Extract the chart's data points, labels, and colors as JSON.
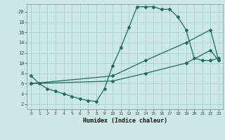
{
  "xlabel": "Humidex (Indice chaleur)",
  "bg_color": "#cce8e4",
  "grid_color": "#aed4cf",
  "line_color": "#1a6b5e",
  "xlim": [
    -0.5,
    23.5
  ],
  "ylim": [
    1.0,
    21.5
  ],
  "xticks": [
    0,
    1,
    2,
    3,
    4,
    5,
    6,
    7,
    8,
    9,
    10,
    11,
    12,
    13,
    14,
    15,
    16,
    17,
    18,
    19,
    20,
    21,
    22,
    23
  ],
  "yticks": [
    2,
    4,
    6,
    8,
    10,
    12,
    14,
    16,
    18,
    20
  ],
  "line1_x": [
    0,
    1,
    2,
    3,
    4,
    5,
    6,
    7,
    8,
    9,
    10,
    11,
    12,
    13,
    14,
    15,
    16,
    17,
    18,
    19,
    20,
    21,
    22,
    23
  ],
  "line1_y": [
    7.5,
    6.0,
    5.0,
    4.5,
    4.0,
    3.5,
    3.0,
    2.7,
    2.5,
    5.0,
    9.5,
    13.0,
    17.0,
    21.0,
    21.0,
    21.0,
    20.5,
    20.5,
    19.0,
    16.5,
    11.0,
    10.5,
    10.5,
    11.0
  ],
  "line2_x": [
    0,
    10,
    14,
    19,
    22,
    23
  ],
  "line2_y": [
    6.0,
    7.5,
    10.5,
    14.0,
    16.5,
    10.5
  ],
  "line3_x": [
    0,
    10,
    14,
    19,
    22,
    23
  ],
  "line3_y": [
    6.0,
    6.5,
    8.0,
    10.0,
    12.5,
    10.5
  ]
}
